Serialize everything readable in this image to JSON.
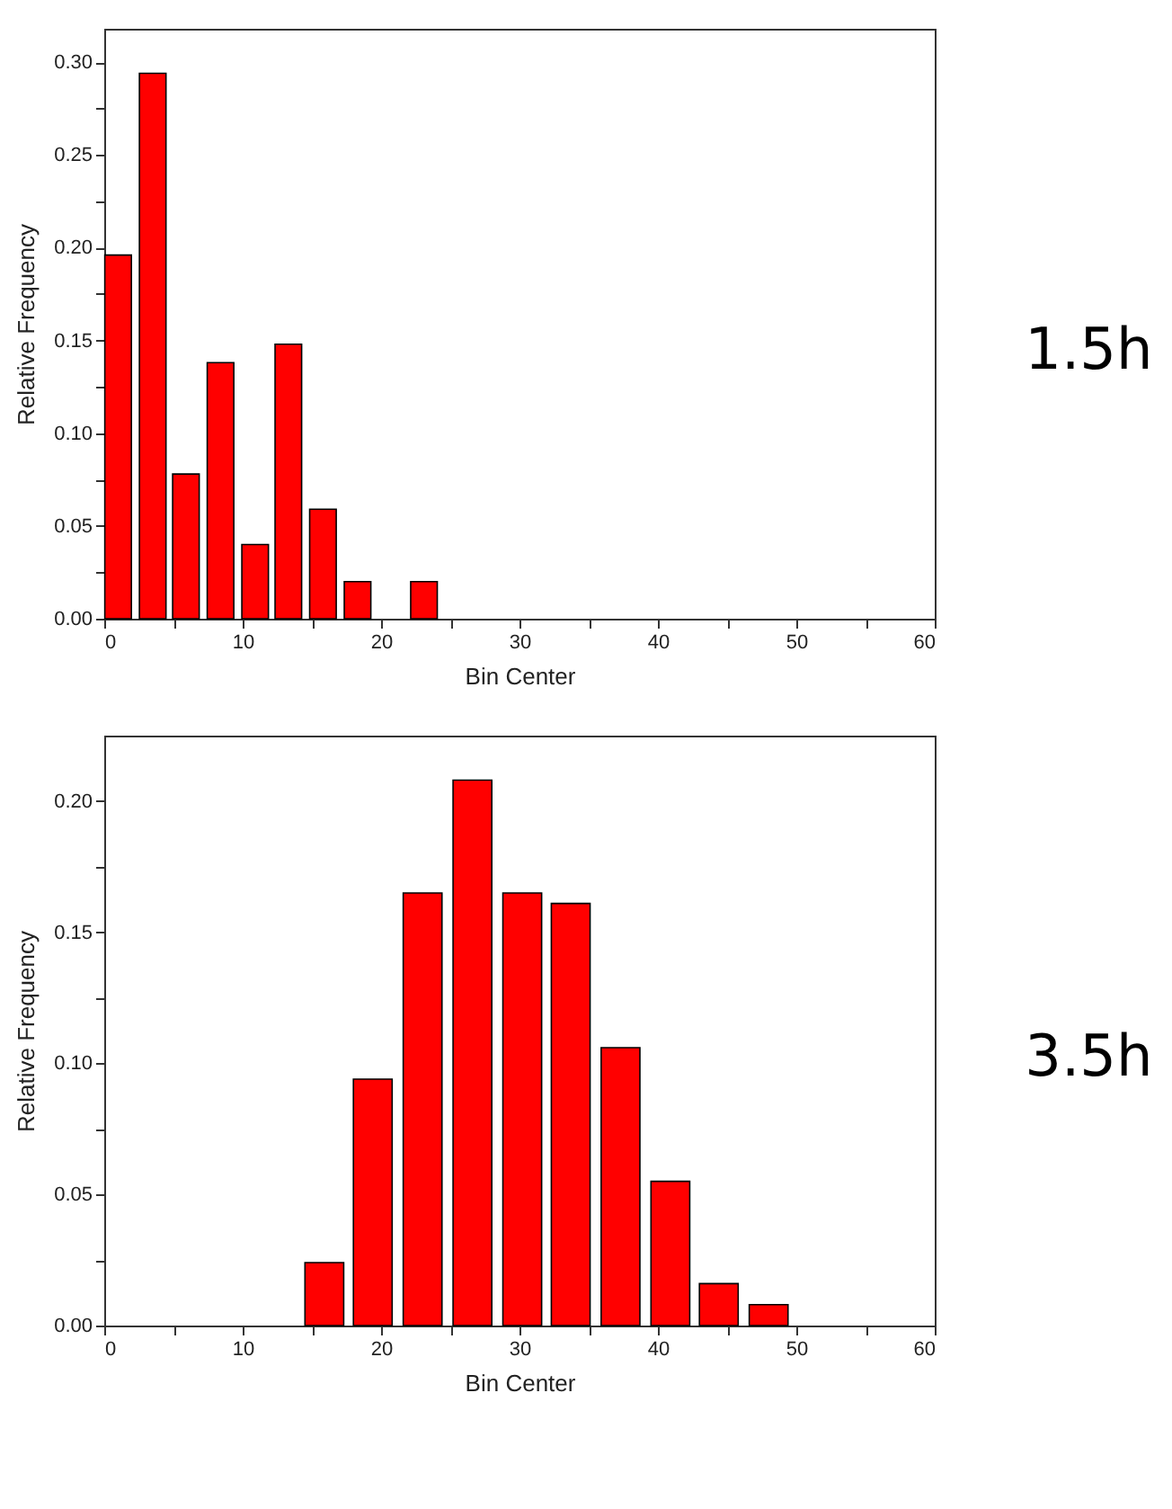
{
  "chart_data": [
    {
      "type": "bar",
      "annotations": [
        "1.5h"
      ],
      "xlabel": "Bin Center",
      "ylabel": "Relative Frequency",
      "color": "#ff0000",
      "x": [
        1.0,
        3.5,
        5.9,
        8.4,
        10.9,
        13.3,
        15.8,
        18.3,
        23.1
      ],
      "values": [
        0.196,
        0.294,
        0.078,
        0.138,
        0.04,
        0.148,
        0.059,
        0.02,
        0.02
      ],
      "xlim": [
        0,
        60
      ],
      "xticks": [
        0,
        {
          "value": 5,
          "label": null
        },
        10,
        {
          "value": 15,
          "label": null
        },
        20,
        {
          "value": 25,
          "label": null
        },
        30,
        {
          "value": 35,
          "label": null
        },
        40,
        {
          "value": 45,
          "label": null
        },
        50,
        {
          "value": 55,
          "label": null
        },
        60
      ],
      "ylim": [
        0,
        0.318
      ],
      "yticks": [
        {
          "value": 0,
          "label": "0.00"
        },
        {
          "value": 0.025,
          "label": null
        },
        {
          "value": 0.05,
          "label": "0.05"
        },
        {
          "value": 0.075,
          "label": null
        },
        {
          "value": 0.1,
          "label": "0.10"
        },
        {
          "value": 0.125,
          "label": null
        },
        {
          "value": 0.15,
          "label": "0.15"
        },
        {
          "value": 0.175,
          "label": null
        },
        {
          "value": 0.2,
          "label": "0.20"
        },
        {
          "value": 0.225,
          "label": null
        },
        {
          "value": 0.25,
          "label": "0.25"
        },
        {
          "value": 0.275,
          "label": null
        },
        {
          "value": 0.3,
          "label": "0.30"
        }
      ],
      "grid": false
    },
    {
      "type": "bar",
      "annotations": [
        "3.5h"
      ],
      "xlabel": "Bin Center",
      "ylabel": "Relative Frequency",
      "color": "#ff0000",
      "x": [
        15.9,
        19.4,
        23.0,
        26.6,
        30.2,
        33.7,
        37.3,
        40.9,
        44.4,
        48.0
      ],
      "values": [
        0.024,
        0.094,
        0.165,
        0.208,
        0.165,
        0.161,
        0.106,
        0.055,
        0.016,
        0.008
      ],
      "xlim": [
        0,
        60
      ],
      "xticks": [
        0,
        {
          "value": 5,
          "label": null
        },
        10,
        {
          "value": 15,
          "label": null
        },
        20,
        {
          "value": 25,
          "label": null
        },
        30,
        {
          "value": 35,
          "label": null
        },
        40,
        {
          "value": 45,
          "label": null
        },
        50,
        {
          "value": 55,
          "label": null
        },
        60
      ],
      "ylim": [
        0,
        0.225
      ],
      "yticks": [
        {
          "value": 0,
          "label": "0.00"
        },
        {
          "value": 0.025,
          "label": null
        },
        {
          "value": 0.05,
          "label": "0.05"
        },
        {
          "value": 0.075,
          "label": null
        },
        {
          "value": 0.1,
          "label": "0.10"
        },
        {
          "value": 0.125,
          "label": null
        },
        {
          "value": 0.15,
          "label": "0.15"
        },
        {
          "value": 0.175,
          "label": null
        },
        {
          "value": 0.2,
          "label": "0.20"
        }
      ],
      "grid": false
    }
  ]
}
